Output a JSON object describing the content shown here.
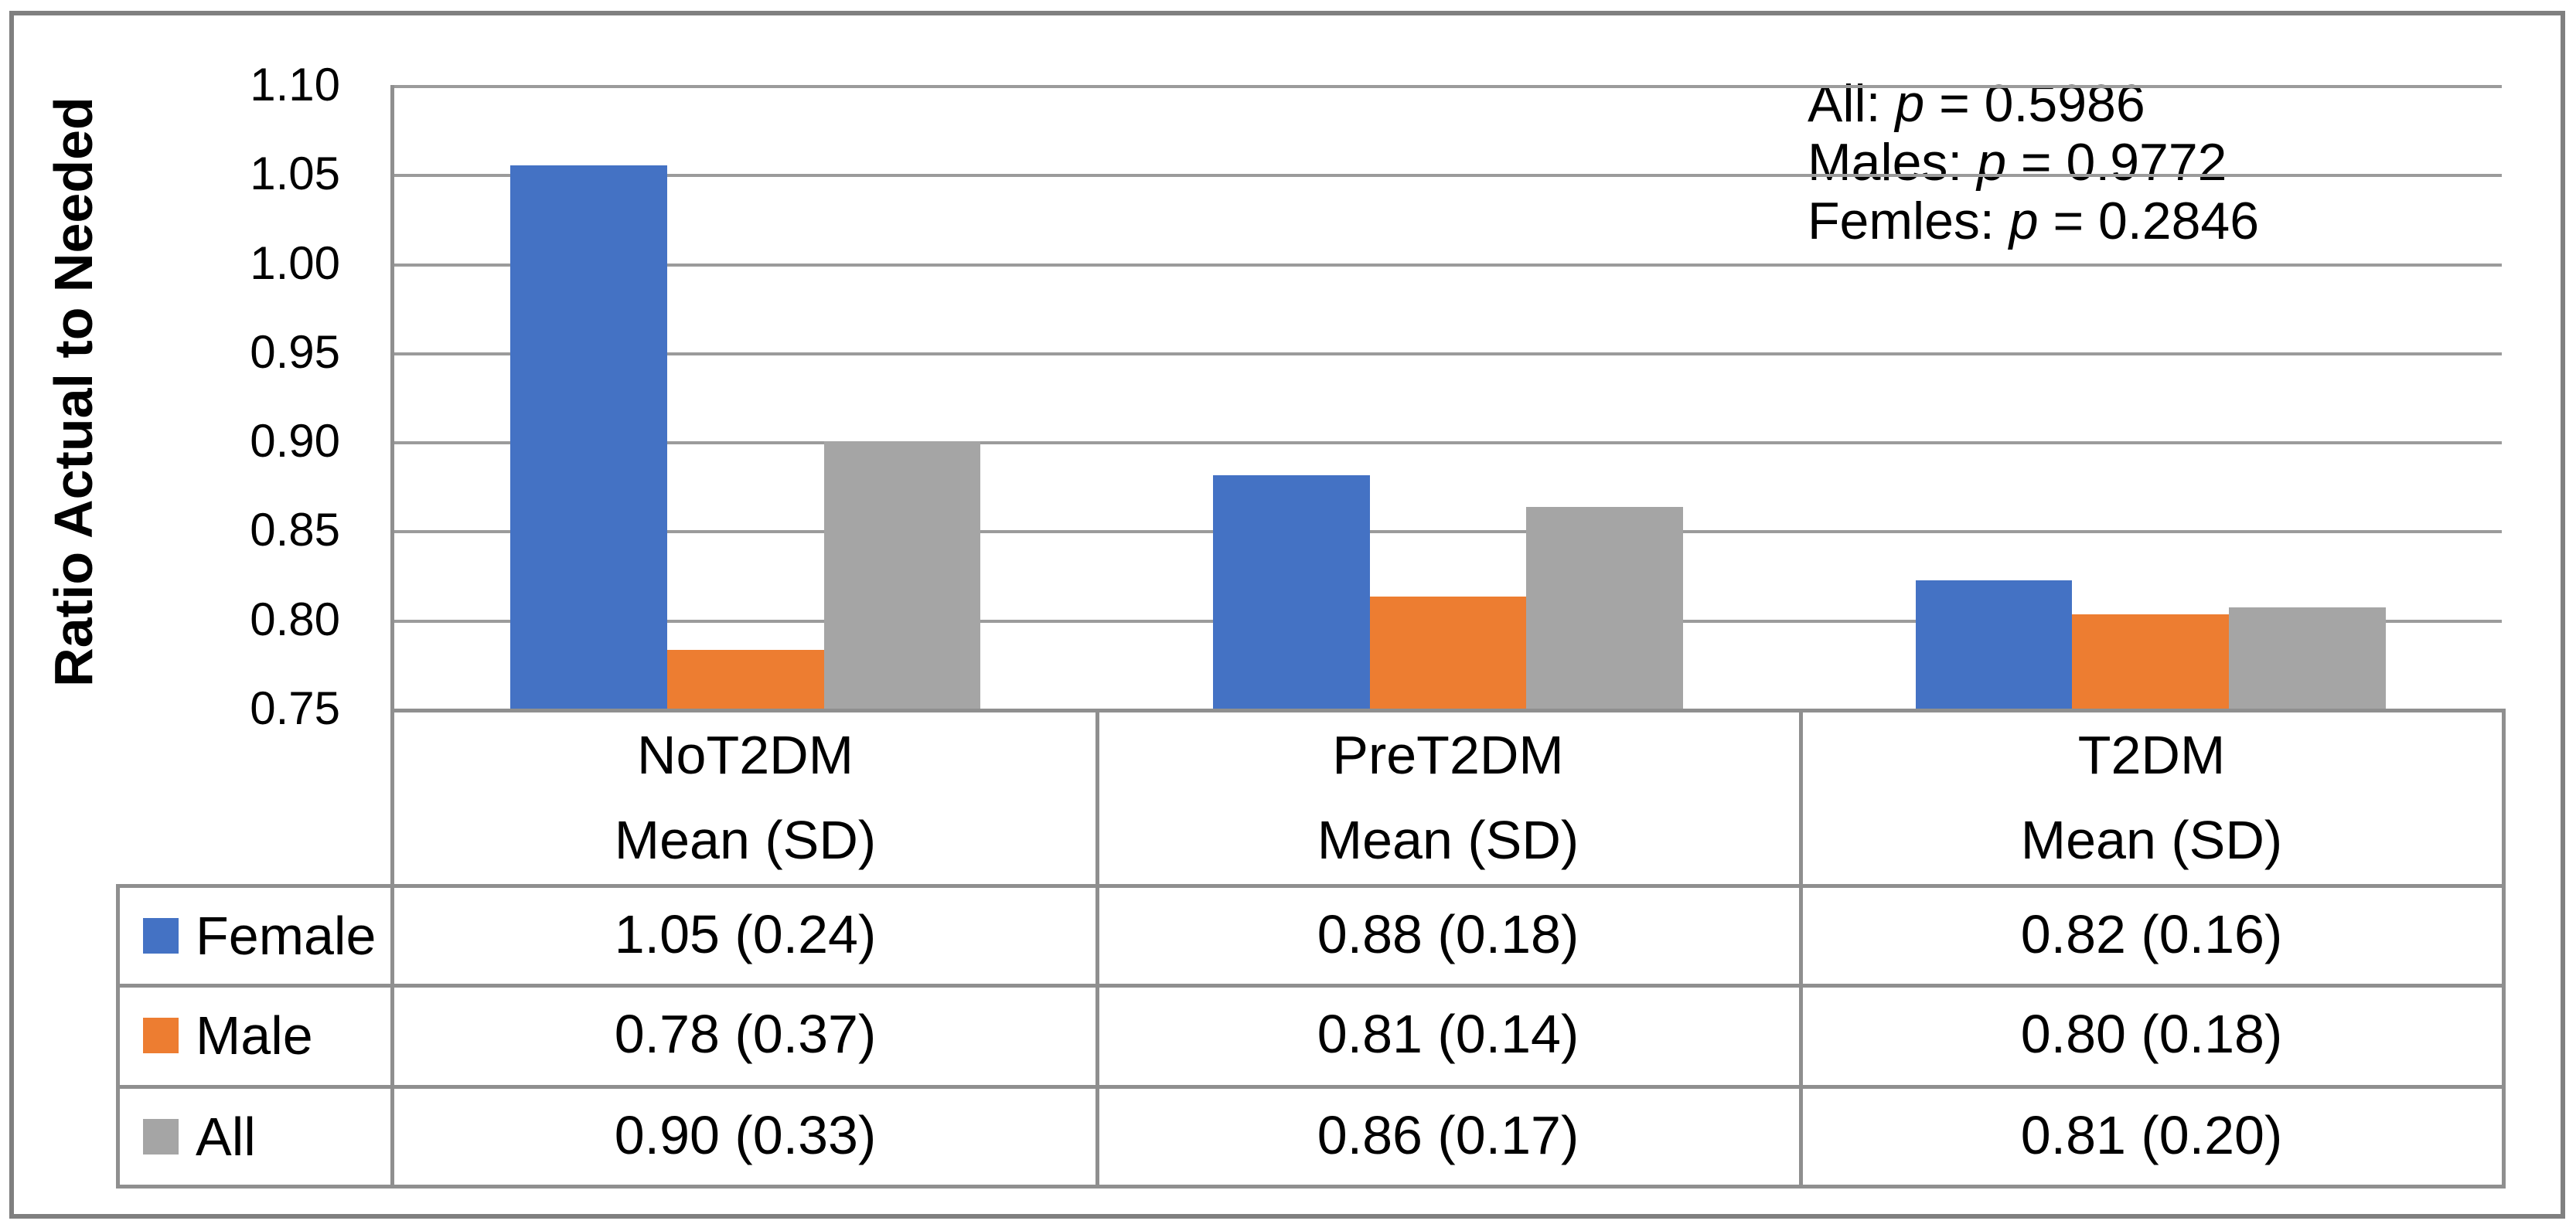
{
  "chart_data": {
    "type": "bar",
    "title": "",
    "xlabel": "",
    "ylabel": "Ratio Actual to Needed",
    "ylim": [
      0.75,
      1.1
    ],
    "ytick_step": 0.05,
    "yticks": [
      "1.10",
      "1.05",
      "1.00",
      "0.95",
      "0.90",
      "0.85",
      "0.80",
      "0.75"
    ],
    "grid": "horizontal",
    "legend_position": "left-table-column",
    "categories": [
      "NoT2DM",
      "PreT2DM",
      "T2DM"
    ],
    "table_subheader": "Mean (SD)",
    "series": [
      {
        "name": "Female",
        "color": "#4472C4",
        "values": [
          1.05,
          0.88,
          0.82
        ],
        "values_visual": [
          1.055,
          0.881,
          0.822
        ],
        "mean_sd": [
          "1.05 (0.24)",
          "0.88 (0.18)",
          "0.82 (0.16)"
        ]
      },
      {
        "name": "Male",
        "color": "#ED7D31",
        "values": [
          0.78,
          0.81,
          0.8
        ],
        "values_visual": [
          0.783,
          0.813,
          0.803
        ],
        "mean_sd": [
          "0.78 (0.37)",
          "0.81 (0.14)",
          "0.80 (0.18)"
        ]
      },
      {
        "name": "All",
        "color": "#A5A5A5",
        "values": [
          0.9,
          0.86,
          0.81
        ],
        "values_visual": [
          0.9,
          0.863,
          0.807
        ],
        "mean_sd": [
          "0.90 (0.33)",
          "0.86 (0.17)",
          "0.81 (0.20)"
        ]
      }
    ],
    "annotations": [
      {
        "pre": "All: ",
        "var": "p",
        "rest": " = 0.5986"
      },
      {
        "pre": "Males: ",
        "var": "p",
        "rest": " = 0.9772"
      },
      {
        "pre": "Femles: ",
        "var": "p",
        "rest": " = 0.2846"
      }
    ]
  }
}
